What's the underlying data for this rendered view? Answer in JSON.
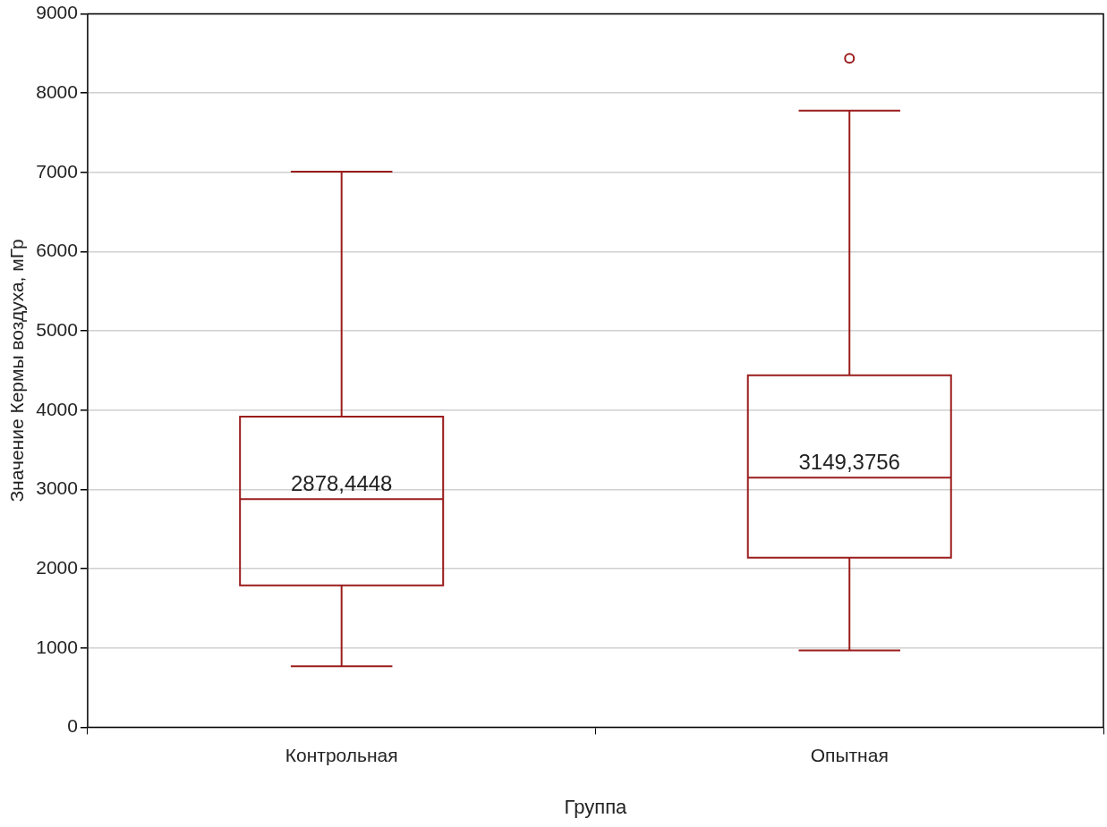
{
  "chart_data": {
    "type": "box",
    "xlabel": "Группа",
    "ylabel": "Значение Кермы воздуха, мГр",
    "categories": [
      "Контрольная",
      "Опытная"
    ],
    "boxes": [
      {
        "low": 770,
        "q1": 1790,
        "median": 2878.4448,
        "q3": 3920,
        "high": 7010
      },
      {
        "low": 970,
        "q1": 2140,
        "median": 3149.3756,
        "q3": 4440,
        "high": 7780,
        "outliers": [
          8440
        ]
      }
    ],
    "color": "#9b1c1c",
    "ylim": [
      0,
      9000
    ],
    "yticks": [
      0,
      1000,
      2000,
      3000,
      4000,
      5000,
      6000,
      7000,
      8000,
      9000
    ],
    "grid": "y",
    "annotations": [
      {
        "text": "2878,4448",
        "x": "Контрольная",
        "y": 2878.4448
      },
      {
        "text": "3149,3756",
        "x": "Опытная",
        "y": 3149.3756
      }
    ]
  }
}
